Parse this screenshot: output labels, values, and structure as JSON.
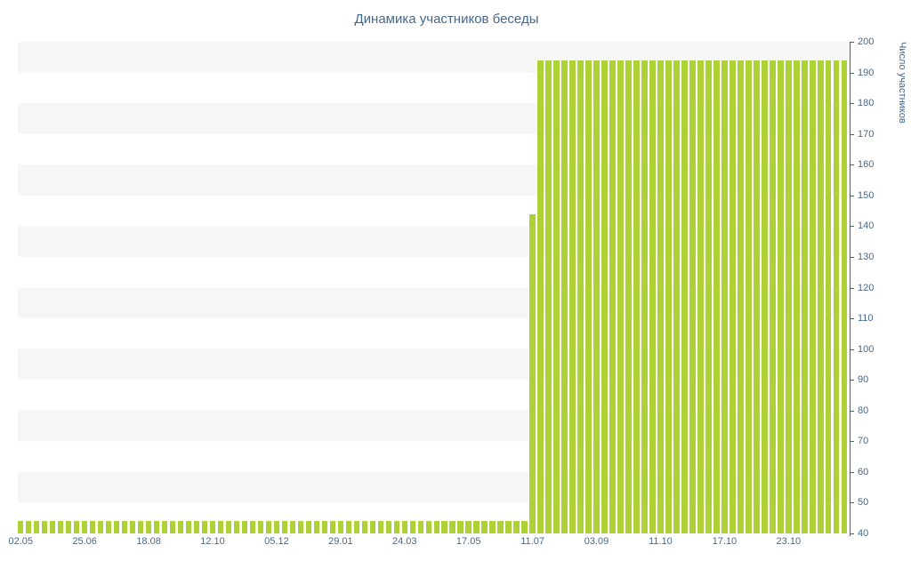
{
  "chart_data": {
    "type": "bar",
    "title": "Динамика участников беседы",
    "ylabel": "Число участников",
    "ylim": [
      40,
      200
    ],
    "y_ticks": [
      200,
      190,
      180,
      170,
      160,
      150,
      140,
      130,
      120,
      110,
      100,
      90,
      80,
      70,
      60,
      50,
      40
    ],
    "x_labels": [
      "02.05",
      "25.06",
      "18.08",
      "12.10",
      "05.12",
      "29.01",
      "24.03",
      "17.05",
      "11.07",
      "03.09",
      "11.10",
      "17.10",
      "23.10"
    ],
    "label_every": 8,
    "bar_color": "#aed136",
    "axis_color": "#3f6b4f",
    "text_color": "#45688e",
    "stripe_color": "#f6f6f6",
    "grid": "horizontal-bands",
    "legend": "none",
    "values": [
      44,
      44,
      44,
      44,
      44,
      44,
      44,
      44,
      44,
      44,
      44,
      44,
      44,
      44,
      44,
      44,
      44,
      44,
      44,
      44,
      44,
      44,
      44,
      44,
      44,
      44,
      44,
      44,
      44,
      44,
      44,
      44,
      44,
      44,
      44,
      44,
      44,
      44,
      44,
      44,
      44,
      44,
      44,
      44,
      44,
      44,
      44,
      44,
      44,
      44,
      44,
      44,
      44,
      44,
      44,
      44,
      44,
      44,
      44,
      44,
      44,
      44,
      44,
      44,
      144,
      194,
      194,
      194,
      194,
      194,
      194,
      194,
      194,
      194,
      194,
      194,
      194,
      194,
      194,
      194,
      194,
      194,
      194,
      194,
      194,
      194,
      194,
      194,
      194,
      194,
      194,
      194,
      194,
      194,
      194,
      194,
      194,
      194,
      194,
      194,
      194,
      194,
      194,
      194
    ]
  }
}
